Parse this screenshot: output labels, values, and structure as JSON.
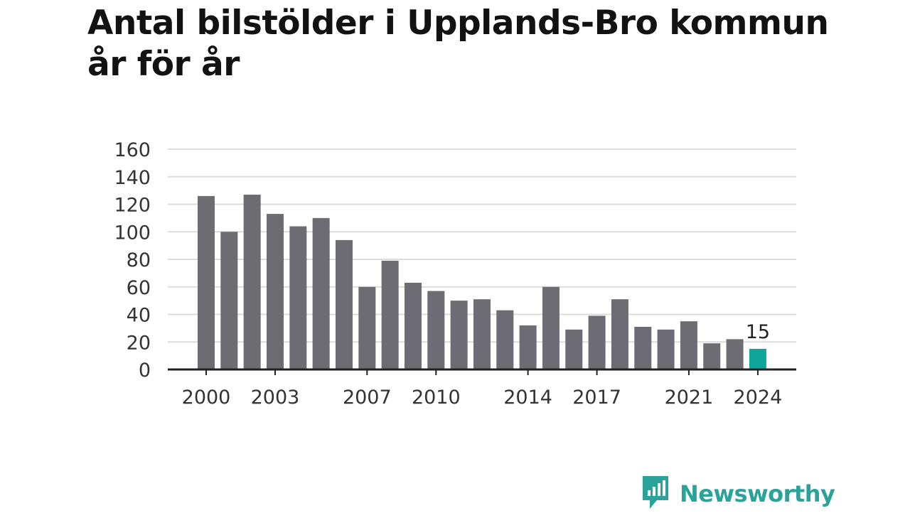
{
  "title": "Antal bilstölder i Upplands-Bro kommun år för år",
  "brand": {
    "name": "Newsworthy",
    "icon": "newsworthy-logo-icon",
    "color": "#2aa39a"
  },
  "colors": {
    "bar": "#6d6c72",
    "highlight": "#0ea59a",
    "grid": "#dcdcdc",
    "axis": "#222222"
  },
  "chart_data": {
    "type": "bar",
    "title": "Antal bilstölder i Upplands-Bro kommun år för år",
    "xlabel": "",
    "ylabel": "",
    "categories": [
      "2000",
      "2001",
      "2002",
      "2003",
      "2004",
      "2005",
      "2006",
      "2007",
      "2008",
      "2009",
      "2010",
      "2011",
      "2012",
      "2013",
      "2014",
      "2015",
      "2016",
      "2017",
      "2018",
      "2019",
      "2020",
      "2021",
      "2022",
      "2023",
      "2024"
    ],
    "values": [
      126,
      100,
      127,
      113,
      104,
      110,
      94,
      60,
      79,
      63,
      57,
      50,
      51,
      43,
      32,
      60,
      29,
      39,
      51,
      31,
      29,
      35,
      19,
      22,
      15
    ],
    "xtick_labels": [
      "2000",
      "2003",
      "2007",
      "2010",
      "2014",
      "2017",
      "2021",
      "2024"
    ],
    "ylim": [
      0,
      160
    ],
    "yticks": [
      0,
      20,
      40,
      60,
      80,
      100,
      120,
      140,
      160
    ],
    "grid": true,
    "highlight": {
      "category": "2024",
      "label": "15"
    }
  }
}
